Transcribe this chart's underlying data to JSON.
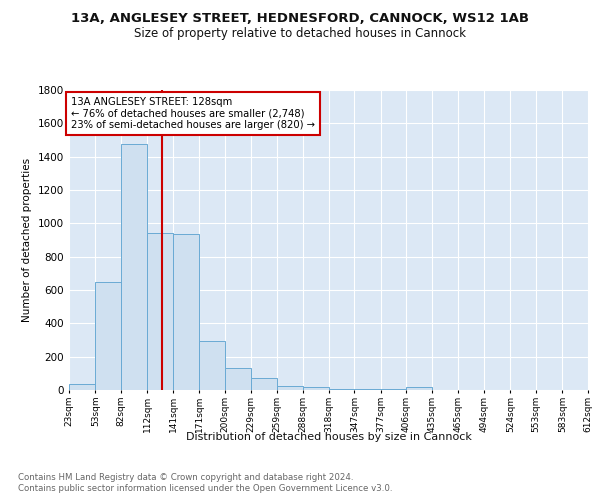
{
  "title1": "13A, ANGLESEY STREET, HEDNESFORD, CANNOCK, WS12 1AB",
  "title2": "Size of property relative to detached houses in Cannock",
  "xlabel": "Distribution of detached houses by size in Cannock",
  "ylabel": "Number of detached properties",
  "bar_color": "#cfe0f0",
  "bar_edge_color": "#6aaad4",
  "red_line_x": 128,
  "bins": [
    23,
    53,
    82,
    112,
    141,
    171,
    200,
    229,
    259,
    288,
    318,
    347,
    377,
    406,
    435,
    465,
    494,
    524,
    553,
    583,
    612
  ],
  "counts": [
    35,
    650,
    1475,
    940,
    935,
    295,
    130,
    70,
    25,
    20,
    5,
    5,
    5,
    20,
    0,
    0,
    0,
    0,
    0,
    0
  ],
  "annotation_text": "13A ANGLESEY STREET: 128sqm\n← 76% of detached houses are smaller (2,748)\n23% of semi-detached houses are larger (820) →",
  "annotation_box_color": "#ffffff",
  "annotation_border_color": "#cc0000",
  "footnote1": "Contains HM Land Registry data © Crown copyright and database right 2024.",
  "footnote2": "Contains public sector information licensed under the Open Government Licence v3.0.",
  "bg_color": "#ffffff",
  "plot_bg_color": "#dce8f5",
  "grid_color": "#ffffff",
  "ylim": [
    0,
    1800
  ],
  "yticks": [
    0,
    200,
    400,
    600,
    800,
    1000,
    1200,
    1400,
    1600,
    1800
  ],
  "tick_labels": [
    "23sqm",
    "53sqm",
    "82sqm",
    "112sqm",
    "141sqm",
    "171sqm",
    "200sqm",
    "229sqm",
    "259sqm",
    "288sqm",
    "318sqm",
    "347sqm",
    "377sqm",
    "406sqm",
    "435sqm",
    "465sqm",
    "494sqm",
    "524sqm",
    "553sqm",
    "583sqm",
    "612sqm"
  ]
}
